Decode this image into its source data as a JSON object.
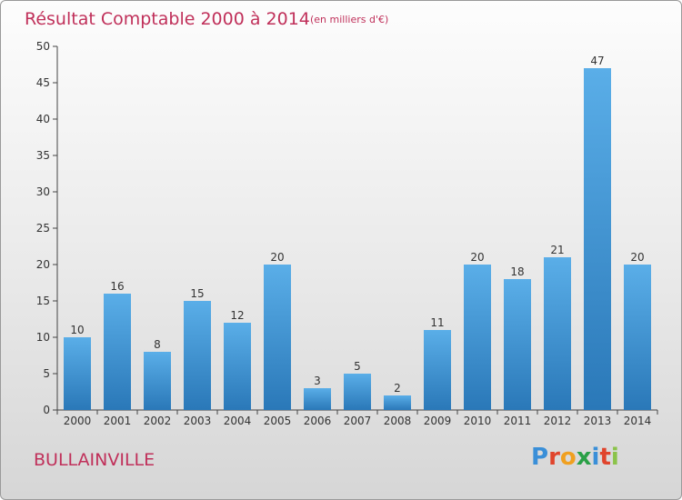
{
  "chart_data": {
    "type": "bar",
    "title": "Résultat Comptable 2000 à 2014",
    "subtitle": "(en milliers d'€)",
    "categories": [
      "2000",
      "2001",
      "2002",
      "2003",
      "2004",
      "2005",
      "2006",
      "2007",
      "2008",
      "2009",
      "2010",
      "2011",
      "2012",
      "2013",
      "2014"
    ],
    "values": [
      10,
      16,
      8,
      15,
      12,
      20,
      3,
      5,
      2,
      11,
      20,
      18,
      21,
      47,
      20
    ],
    "ylim": [
      0,
      50
    ],
    "yticks": [
      0,
      5,
      10,
      15,
      20,
      25,
      30,
      35,
      40,
      45,
      50
    ],
    "grid": false,
    "bar_color_top": "#5aaee8",
    "bar_color_bottom": "#2a78b8"
  },
  "footer": {
    "city": "BULLAINVILLE",
    "logo_letters": [
      "P",
      "r",
      "o",
      "x",
      "i",
      "t",
      "i"
    ],
    "logo_colors": [
      "#3a8fd8",
      "#e0442c",
      "#f0a020",
      "#2aa046",
      "#3a8fd8",
      "#e0442c",
      "#8bc34a"
    ]
  }
}
